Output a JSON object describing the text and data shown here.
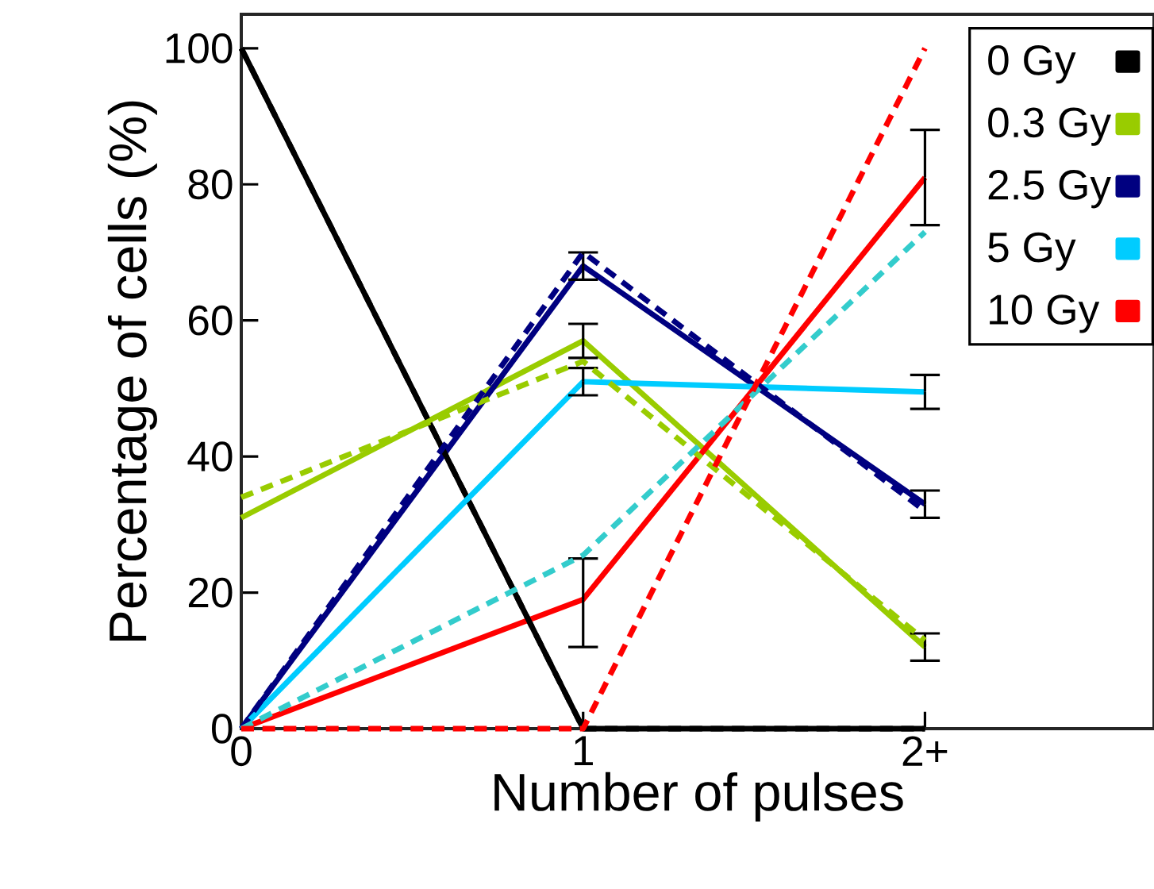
{
  "chart_data": {
    "type": "line",
    "xlabel": "Number of pulses",
    "ylabel": "Percentage of cells (%)",
    "x": [
      0,
      1,
      2
    ],
    "xlim": [
      0,
      2.67
    ],
    "ylim": [
      0,
      105
    ],
    "xticks": [
      0,
      1,
      {
        "value": 2,
        "label": "2+"
      }
    ],
    "yticks": [
      0,
      20,
      40,
      60,
      80,
      100
    ],
    "legend": "top right",
    "series": [
      {
        "name": "0 Gy",
        "color": "#000000",
        "values": [
          100,
          0,
          0
        ],
        "line_style": "solid"
      },
      {
        "name": "0.3 Gy",
        "color": "#99cc00",
        "values": [
          31,
          57,
          12
        ],
        "line_style": "solid",
        "errors": [
          null,
          2.5,
          2
        ]
      },
      {
        "name": "2.5 Gy",
        "color": "#000080",
        "values": [
          0,
          68,
          33
        ],
        "line_style": "solid",
        "errors": [
          null,
          2,
          2
        ]
      },
      {
        "name": "5 Gy",
        "color": "#00ccff",
        "values": [
          0,
          51,
          49.5
        ],
        "line_style": "solid",
        "errors": [
          null,
          2,
          2.5
        ]
      },
      {
        "name": "10 Gy",
        "color": "#ff0000",
        "values": [
          0,
          19,
          81
        ],
        "line_style": "solid",
        "errors": [
          null,
          [
            12,
            25
          ],
          [
            74,
            88
          ]
        ]
      },
      {
        "color": "#000000",
        "values": [
          100,
          0,
          0
        ],
        "line_style": "dashed"
      },
      {
        "color": "#99cc00",
        "values": [
          34,
          54,
          13
        ],
        "line_style": "dashed"
      },
      {
        "color": "#000080",
        "values": [
          0,
          70,
          32
        ],
        "line_style": "dashed"
      },
      {
        "color": "#33cccc",
        "values": [
          0,
          25.5,
          73
        ],
        "line_style": "dashed"
      },
      {
        "color": "#ff0000",
        "values": [
          0,
          0,
          100
        ],
        "line_style": "dashed"
      }
    ]
  }
}
